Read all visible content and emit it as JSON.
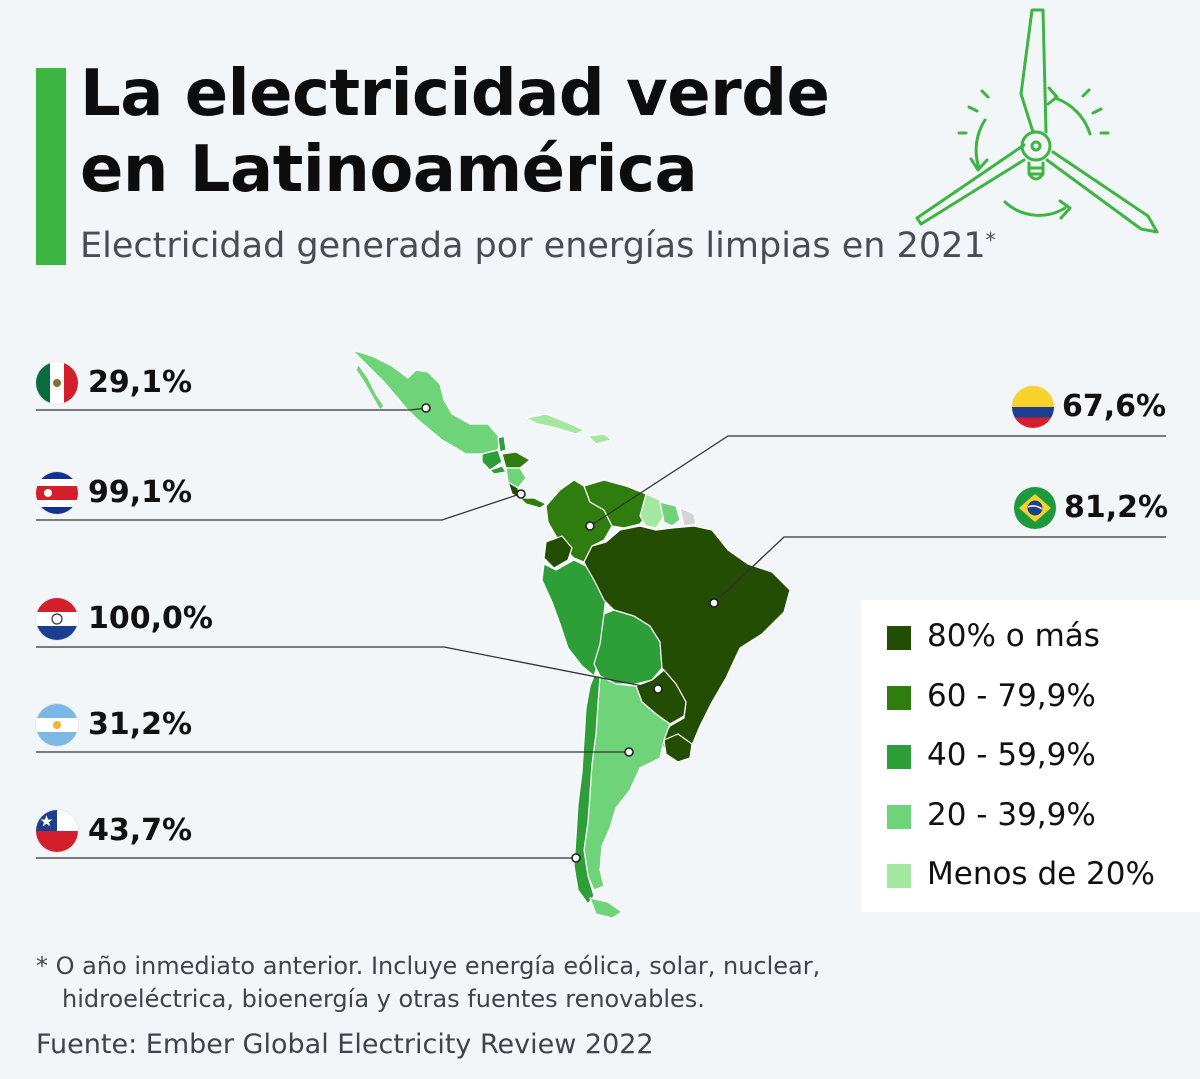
{
  "header": {
    "title_line1": "La electricidad verde",
    "title_line2": "en Latinoamérica",
    "subtitle": "Electricidad generada por energías limpias en 2021",
    "subtitle_mark": "*"
  },
  "icons": {
    "header": "wind-turbine-recycle-icon"
  },
  "colors": {
    "accent": "#3db543",
    "tier_80_plus": "#234d02",
    "tier_60_79": "#2e7d0e",
    "tier_40_59": "#2d9e38",
    "tier_20_39": "#6fd37a",
    "tier_below_20": "#a4e8a0",
    "no_data": "#d2d4d6"
  },
  "countries": [
    {
      "key": "mexico",
      "flag": "mexico-flag",
      "value": "29,1%"
    },
    {
      "key": "costa-rica",
      "flag": "costa-rica-flag",
      "value": "99,1%"
    },
    {
      "key": "paraguay",
      "flag": "paraguay-flag",
      "value": "100,0%"
    },
    {
      "key": "argentina",
      "flag": "argentina-flag",
      "value": "31,2%"
    },
    {
      "key": "chile",
      "flag": "chile-flag",
      "value": "43,7%"
    },
    {
      "key": "colombia",
      "flag": "colombia-flag",
      "value": "67,6%"
    },
    {
      "key": "brazil",
      "flag": "brazil-flag",
      "value": "81,2%"
    }
  ],
  "legend": {
    "items": [
      {
        "label": "80% o más",
        "color": "#234d02"
      },
      {
        "label": "60 - 79,9%",
        "color": "#2e7d0e"
      },
      {
        "label": "40 - 59,9%",
        "color": "#2d9e38"
      },
      {
        "label": "20 - 39,9%",
        "color": "#6fd37a"
      },
      {
        "label": "Menos de 20%",
        "color": "#a4e8a0"
      }
    ]
  },
  "footer": {
    "note_line1": "* O año inmediato anterior. Incluye energía eólica, solar, nuclear,",
    "note_line2": "hidroeléctrica, bioenergía y otras fuentes renovables.",
    "source": "Fuente: Ember Global Electricity Review 2022"
  }
}
